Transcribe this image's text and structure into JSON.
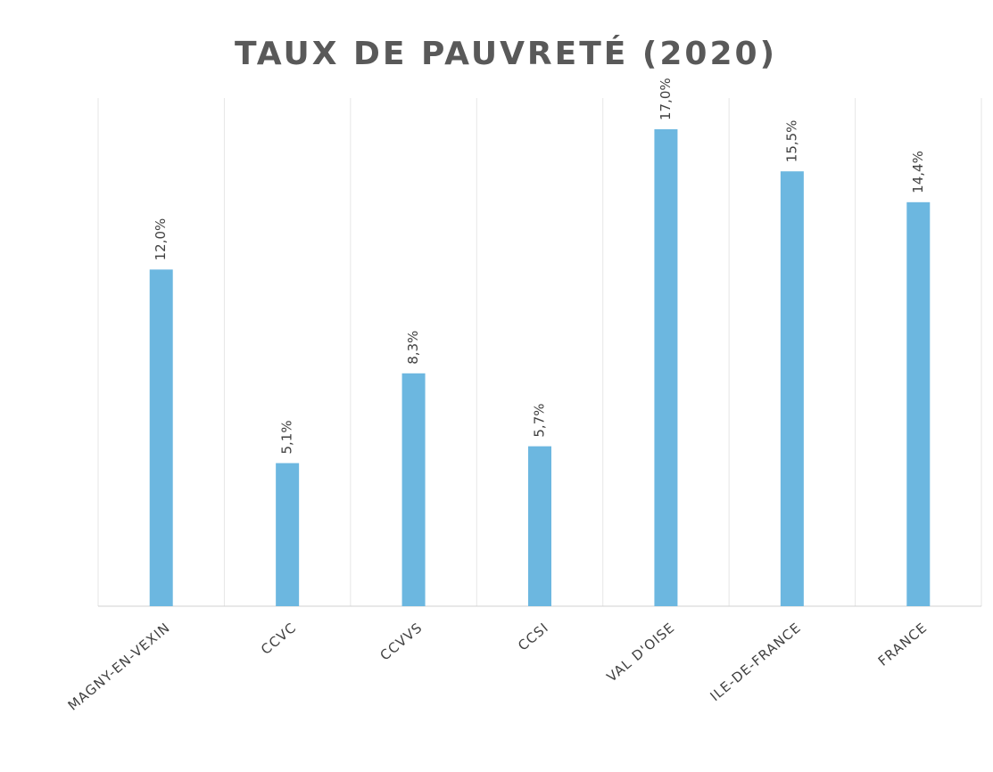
{
  "chart_data": {
    "type": "bar",
    "title": "TAUX DE PAUVRETÉ (2020)",
    "categories": [
      "MAGNY-EN-VEXIN",
      "CCVC",
      "CCVVS",
      "CCSI",
      "VAL D'OISE",
      "ILE-DE-FRANCE",
      "FRANCE"
    ],
    "values": [
      12.0,
      5.1,
      8.3,
      5.7,
      17.0,
      15.5,
      14.4
    ],
    "value_labels": [
      "12,0%",
      "5,1%",
      "8,3%",
      "5,7%",
      "17,0%",
      "15,5%",
      "14,4%"
    ],
    "color": "#6cb7e0"
  }
}
